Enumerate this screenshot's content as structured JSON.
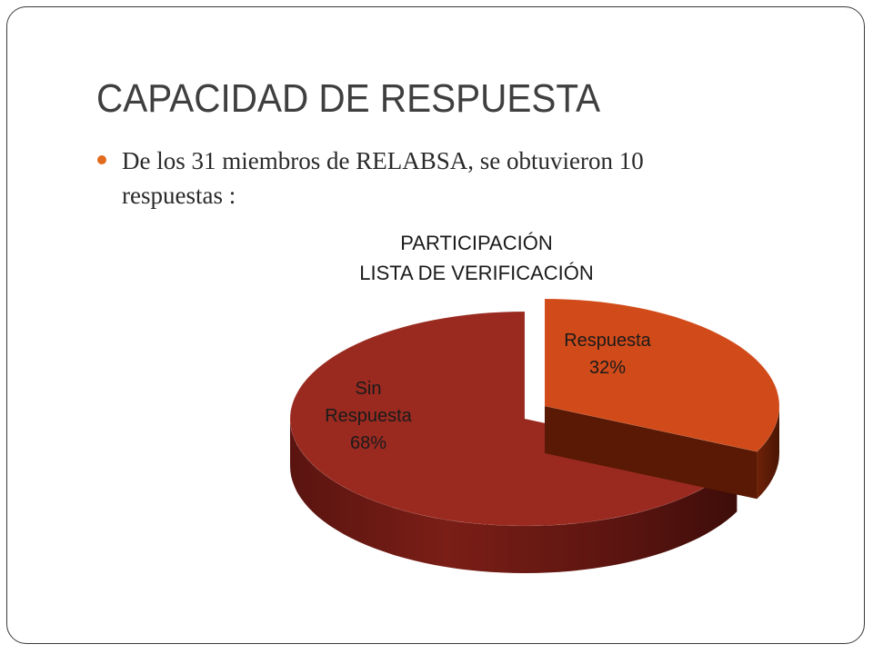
{
  "slide": {
    "title": "CAPACIDAD DE RESPUESTA",
    "bullet": "De los 31 miembros de RELABSA, se obtuvieron 10 respuestas :"
  },
  "chart_data": {
    "type": "pie",
    "title_lines": [
      "PARTICIPACIÓN",
      "LISTA DE VERIFICACIÓN"
    ],
    "slices": [
      {
        "name": "Respuesta",
        "value": 32,
        "label_lines": [
          "Respuesta",
          "32%"
        ],
        "color": "#d14b1a",
        "exploded": true
      },
      {
        "name": "Sin Respuesta",
        "value": 68,
        "label_lines": [
          "Sin",
          "Respuesta",
          "68%"
        ],
        "color": "#9a2a20",
        "exploded": false
      }
    ]
  },
  "colors": {
    "bullet": "#e16b1e",
    "title": "#3f3f3f"
  }
}
